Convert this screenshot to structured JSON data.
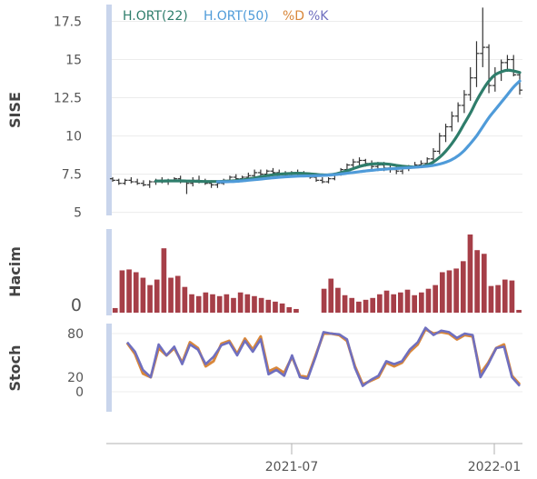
{
  "chart_data": [
    {
      "type": "candlestick",
      "ylabel": "SISE",
      "yticks": [
        5,
        7.5,
        10,
        12.5,
        15,
        17.5
      ],
      "ylim": [
        4.8,
        18.6
      ],
      "legend": {
        "placement": "top-left",
        "entries": [
          {
            "label": "H.ORT(22)",
            "color": "#2e7d6b"
          },
          {
            "label": "H.ORT(50)",
            "color": "#4f9bd9"
          },
          {
            "label": "%D",
            "color": "#d9873a"
          },
          {
            "label": "%K",
            "color": "#6f6fbf"
          }
        ]
      },
      "ohlc": [
        [
          7.2,
          7.3,
          7.0,
          7.1
        ],
        [
          7.1,
          7.2,
          6.8,
          6.9
        ],
        [
          6.9,
          7.2,
          6.8,
          7.1
        ],
        [
          7.1,
          7.3,
          6.9,
          7.0
        ],
        [
          7.0,
          7.2,
          6.8,
          6.9
        ],
        [
          6.9,
          7.1,
          6.7,
          6.8
        ],
        [
          6.8,
          7.1,
          6.6,
          7.0
        ],
        [
          7.0,
          7.2,
          6.8,
          7.1
        ],
        [
          7.1,
          7.3,
          6.9,
          7.0
        ],
        [
          7.0,
          7.2,
          6.8,
          7.1
        ],
        [
          7.1,
          7.3,
          7.0,
          7.2
        ],
        [
          7.2,
          7.4,
          6.9,
          7.0
        ],
        [
          7.0,
          7.1,
          6.2,
          6.9
        ],
        [
          6.9,
          7.3,
          6.7,
          7.1
        ],
        [
          7.1,
          7.4,
          6.9,
          7.0
        ],
        [
          7.0,
          7.2,
          6.8,
          6.9
        ],
        [
          6.9,
          7.1,
          6.6,
          6.8
        ],
        [
          6.8,
          7.0,
          6.6,
          6.9
        ],
        [
          6.9,
          7.2,
          6.8,
          7.1
        ],
        [
          7.1,
          7.4,
          7.0,
          7.3
        ],
        [
          7.3,
          7.5,
          7.0,
          7.2
        ],
        [
          7.2,
          7.4,
          7.0,
          7.3
        ],
        [
          7.3,
          7.6,
          7.1,
          7.4
        ],
        [
          7.4,
          7.8,
          7.2,
          7.6
        ],
        [
          7.6,
          7.8,
          7.4,
          7.5
        ],
        [
          7.5,
          7.8,
          7.4,
          7.7
        ],
        [
          7.7,
          7.9,
          7.5,
          7.6
        ],
        [
          7.6,
          7.8,
          7.4,
          7.5
        ],
        [
          7.5,
          7.7,
          7.3,
          7.4
        ],
        [
          7.4,
          7.7,
          7.3,
          7.6
        ],
        [
          7.6,
          7.8,
          7.4,
          7.5
        ],
        [
          7.5,
          7.7,
          7.3,
          7.4
        ],
        [
          7.4,
          7.6,
          7.2,
          7.3
        ],
        [
          7.3,
          7.5,
          7.0,
          7.1
        ],
        [
          7.1,
          7.3,
          6.9,
          7.0
        ],
        [
          7.0,
          7.3,
          6.9,
          7.2
        ],
        [
          7.2,
          7.6,
          7.1,
          7.5
        ],
        [
          7.5,
          7.9,
          7.4,
          7.8
        ],
        [
          7.8,
          8.2,
          7.6,
          8.1
        ],
        [
          8.1,
          8.5,
          7.9,
          8.3
        ],
        [
          8.3,
          8.6,
          8.1,
          8.4
        ],
        [
          8.4,
          8.5,
          8.0,
          8.2
        ],
        [
          8.2,
          8.4,
          7.8,
          8.0
        ],
        [
          8.0,
          8.3,
          7.7,
          8.1
        ],
        [
          8.1,
          8.3,
          7.7,
          7.9
        ],
        [
          7.9,
          8.1,
          7.6,
          7.8
        ],
        [
          7.8,
          8.0,
          7.5,
          7.7
        ],
        [
          7.7,
          8.0,
          7.5,
          7.9
        ],
        [
          7.9,
          8.1,
          7.7,
          8.0
        ],
        [
          8.0,
          8.3,
          7.9,
          8.1
        ],
        [
          8.1,
          8.4,
          7.9,
          8.2
        ],
        [
          8.2,
          8.6,
          8.0,
          8.5
        ],
        [
          8.5,
          9.2,
          8.3,
          9.0
        ],
        [
          9.0,
          10.2,
          8.8,
          10.0
        ],
        [
          10.0,
          10.8,
          9.6,
          10.6
        ],
        [
          10.6,
          11.6,
          10.3,
          11.3
        ],
        [
          11.3,
          12.2,
          10.9,
          12.0
        ],
        [
          12.0,
          13.0,
          11.5,
          12.7
        ],
        [
          12.7,
          14.5,
          12.3,
          13.8
        ],
        [
          13.8,
          16.2,
          13.2,
          15.4
        ],
        [
          15.4,
          18.4,
          14.5,
          15.8
        ],
        [
          15.8,
          16.0,
          12.8,
          13.3
        ],
        [
          13.3,
          14.5,
          12.9,
          14.1
        ],
        [
          14.1,
          15.0,
          13.6,
          14.8
        ],
        [
          14.8,
          15.3,
          14.2,
          15.0
        ],
        [
          15.0,
          15.3,
          13.9,
          14.0
        ],
        [
          14.0,
          14.1,
          12.7,
          13.0
        ]
      ],
      "series": [
        {
          "name": "H.ORT(22)",
          "values": [
            null,
            null,
            null,
            null,
            null,
            null,
            null,
            7.05,
            7.05,
            7.06,
            7.06,
            7.06,
            7.05,
            7.04,
            7.03,
            7.02,
            7.02,
            7.02,
            7.03,
            7.05,
            7.08,
            7.12,
            7.18,
            7.25,
            7.33,
            7.4,
            7.46,
            7.5,
            7.53,
            7.55,
            7.56,
            7.55,
            7.52,
            7.48,
            7.45,
            7.45,
            7.5,
            7.6,
            7.72,
            7.86,
            8.0,
            8.1,
            8.16,
            8.19,
            8.18,
            8.14,
            8.08,
            8.02,
            7.98,
            7.97,
            8.0,
            8.1,
            8.3,
            8.6,
            9.0,
            9.5,
            10.1,
            10.8,
            11.5,
            12.3,
            13.0,
            13.6,
            14.0,
            14.2,
            14.3,
            14.25,
            14.15
          ]
        },
        {
          "name": "H.ORT(50)",
          "values": [
            null,
            null,
            null,
            null,
            null,
            null,
            null,
            null,
            null,
            null,
            null,
            null,
            null,
            null,
            null,
            null,
            null,
            7.0,
            7.0,
            7.01,
            7.03,
            7.06,
            7.1,
            7.14,
            7.18,
            7.22,
            7.26,
            7.3,
            7.33,
            7.35,
            7.37,
            7.38,
            7.39,
            7.4,
            7.42,
            7.44,
            7.47,
            7.51,
            7.56,
            7.61,
            7.66,
            7.71,
            7.75,
            7.79,
            7.82,
            7.85,
            7.87,
            7.9,
            7.92,
            7.95,
            7.98,
            8.02,
            8.08,
            8.16,
            8.28,
            8.45,
            8.7,
            9.05,
            9.5,
            10.0,
            10.6,
            11.2,
            11.7,
            12.2,
            12.7,
            13.2,
            13.6
          ]
        }
      ]
    },
    {
      "type": "bar",
      "ylabel": "Hacim",
      "yticks": [
        0
      ],
      "values": [
        0.5,
        4.6,
        4.7,
        4.4,
        3.8,
        3.0,
        3.6,
        7.0,
        3.8,
        4.0,
        2.8,
        2.0,
        1.8,
        2.2,
        2.0,
        1.8,
        2.0,
        1.6,
        2.2,
        2.0,
        1.8,
        1.6,
        1.4,
        1.2,
        1.0,
        0.6,
        0.4,
        0,
        0,
        0,
        2.6,
        3.7,
        2.7,
        1.9,
        1.6,
        1.2,
        1.4,
        1.6,
        2.0,
        2.4,
        2.0,
        2.2,
        2.5,
        1.9,
        2.2,
        2.6,
        3.0,
        4.4,
        4.6,
        4.8,
        5.6,
        8.5,
        6.8,
        6.4,
        2.9,
        3.0,
        3.6,
        3.5,
        0.3
      ]
    },
    {
      "type": "line",
      "ylabel": "Stoch",
      "yticks": [
        0,
        20,
        80
      ],
      "x_ticks": [
        "2021-07",
        "2022-01"
      ],
      "series": [
        {
          "name": "%D",
          "values": [
            67,
            52,
            25,
            20,
            60,
            50,
            60,
            40,
            68,
            60,
            35,
            42,
            66,
            70,
            52,
            73,
            58,
            76,
            28,
            33,
            26,
            48,
            22,
            20,
            50,
            80,
            80,
            78,
            70,
            35,
            10,
            15,
            20,
            40,
            35,
            40,
            55,
            65,
            86,
            80,
            82,
            80,
            72,
            78,
            76,
            25,
            40,
            60,
            65,
            22,
            10
          ]
        },
        {
          "name": "%K",
          "values": [
            68,
            55,
            30,
            20,
            65,
            50,
            62,
            38,
            65,
            58,
            38,
            48,
            64,
            68,
            50,
            70,
            55,
            72,
            24,
            30,
            22,
            50,
            20,
            18,
            48,
            82,
            80,
            79,
            72,
            33,
            8,
            16,
            22,
            42,
            38,
            42,
            58,
            68,
            88,
            78,
            84,
            82,
            74,
            80,
            78,
            20,
            38,
            60,
            62,
            20,
            8
          ]
        }
      ]
    }
  ]
}
